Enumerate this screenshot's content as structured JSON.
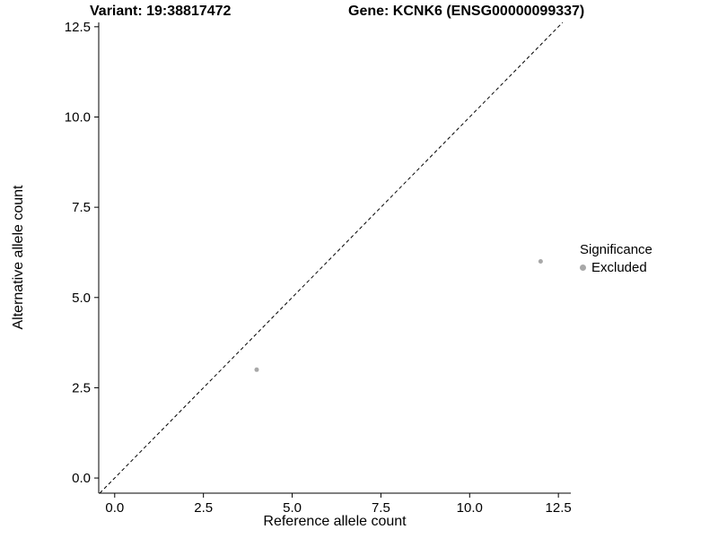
{
  "title": {
    "variant": "Variant: 19:38817472",
    "gene": "Gene: KCNK6 (ENSG00000099337)"
  },
  "chart_data": {
    "type": "scatter",
    "title": "Variant: 19:38817472    Gene: KCNK6 (ENSG00000099337)",
    "xlabel": "Reference allele count",
    "ylabel": "Alternative allele count",
    "xlim": [
      -0.45,
      12.85
    ],
    "ylim": [
      -0.42,
      12.62
    ],
    "xticks": [
      0.0,
      2.5,
      5.0,
      7.5,
      10.0,
      12.5
    ],
    "yticks": [
      0.0,
      2.5,
      5.0,
      7.5,
      10.0,
      12.5
    ],
    "xtick_labels": [
      "0.0",
      "2.5",
      "5.0",
      "7.5",
      "10.0",
      "12.5"
    ],
    "ytick_labels": [
      "0.0",
      "2.5",
      "5.0",
      "7.5",
      "10.0",
      "12.5"
    ],
    "grid": false,
    "identity_line": {
      "style": "dashed",
      "equation": "y = x",
      "color": "#000000"
    },
    "series": [
      {
        "name": "Excluded",
        "color": "#a8a8a8",
        "points": [
          [
            4,
            3
          ],
          [
            12,
            6
          ]
        ]
      }
    ],
    "legend": {
      "title": "Significance",
      "position": "right",
      "entries": [
        {
          "label": "Excluded",
          "color": "#a8a8a8"
        }
      ]
    }
  },
  "colors": {
    "axis": "#000000",
    "text": "#000000",
    "background": "#ffffff",
    "excluded_point": "#a8a8a8"
  }
}
